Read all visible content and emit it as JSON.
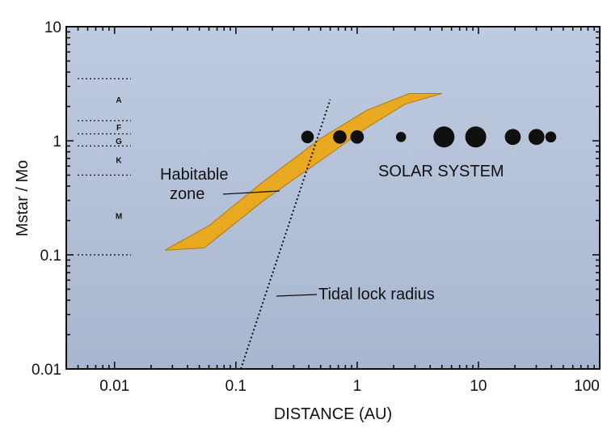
{
  "chart_data": {
    "type": "scatter",
    "x_scale": "log",
    "y_scale": "log",
    "xlim": [
      0.004,
      100
    ],
    "ylim": [
      0.01,
      10
    ],
    "xlabel": "DISTANCE (AU)",
    "ylabel": "Mstar / Mo",
    "x_ticks": [
      {
        "value": 0.01,
        "label": "0.01"
      },
      {
        "value": 0.1,
        "label": "0.1"
      },
      {
        "value": 1,
        "label": "1"
      },
      {
        "value": 10,
        "label": "10"
      },
      {
        "value": 100,
        "label": "100"
      }
    ],
    "y_ticks": [
      {
        "value": 0.01,
        "label": "0.01"
      },
      {
        "value": 0.1,
        "label": "0.1"
      },
      {
        "value": 1,
        "label": "1"
      },
      {
        "value": 10,
        "label": "10"
      }
    ],
    "spectral_classes": {
      "boundaries": [
        3.5,
        1.5,
        1.15,
        0.9,
        0.5,
        0.1
      ],
      "labels": [
        {
          "label": "A",
          "mass": 2.3
        },
        {
          "label": "F",
          "mass": 1.32
        },
        {
          "label": "G",
          "mass": 1.0
        },
        {
          "label": "K",
          "mass": 0.68
        },
        {
          "label": "M",
          "mass": 0.22
        }
      ]
    },
    "solar_system": {
      "label": "SOLAR SYSTEM",
      "mass": 1.08,
      "planets": [
        {
          "distance": 0.39,
          "size": 3.0
        },
        {
          "distance": 0.72,
          "size": 3.2
        },
        {
          "distance": 1.0,
          "size": 3.2
        },
        {
          "distance": 2.3,
          "size": 2.4
        },
        {
          "distance": 5.2,
          "size": 5.0
        },
        {
          "distance": 9.5,
          "size": 5.0
        },
        {
          "distance": 19.2,
          "size": 3.8
        },
        {
          "distance": 30.1,
          "size": 3.8
        },
        {
          "distance": 39.5,
          "size": 2.6
        }
      ]
    },
    "habitable_zone": {
      "label": "Habitable\nzone",
      "color": "#e8a820",
      "polygon": [
        [
          0.026,
          0.11
        ],
        [
          0.055,
          0.115
        ],
        [
          0.17,
          0.3
        ],
        [
          0.55,
          0.72
        ],
        [
          1.2,
          1.3
        ],
        [
          2.5,
          2.1
        ],
        [
          5.0,
          2.6
        ],
        [
          2.7,
          2.6
        ],
        [
          1.2,
          1.85
        ],
        [
          0.5,
          1.05
        ],
        [
          0.16,
          0.42
        ],
        [
          0.06,
          0.18
        ]
      ]
    },
    "tidal_lock_radius": {
      "label": "Tidal lock radius",
      "points": [
        [
          0.11,
          0.01
        ],
        [
          0.6,
          2.3
        ]
      ]
    },
    "colors": {
      "background": "#bfcbe0",
      "background_bottom": "#a8b6cf",
      "habitable_zone": "#e8a820",
      "planets": "#101010",
      "axes": "#111111"
    }
  }
}
